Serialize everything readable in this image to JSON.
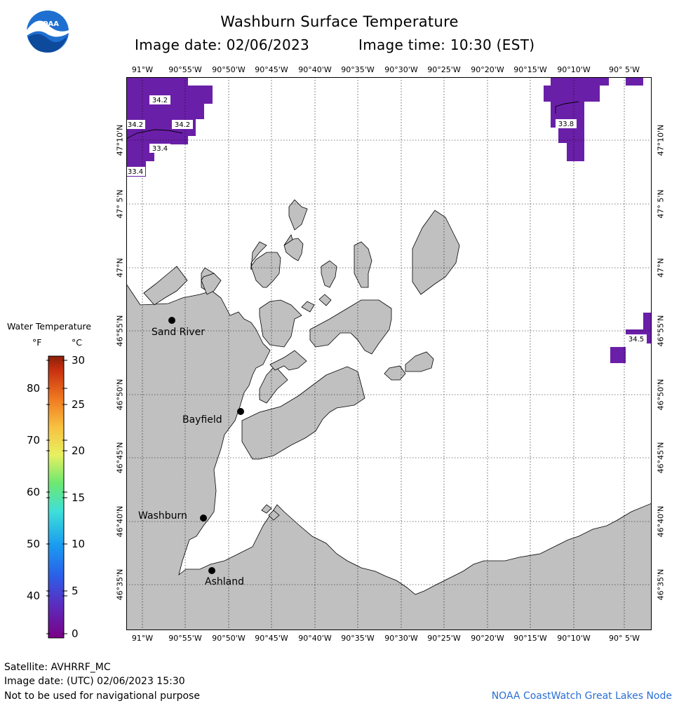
{
  "header": {
    "title": "Washburn Surface Temperature",
    "image_date": "Image date: 02/06/2023",
    "image_time": "Image time: 10:30 (EST)"
  },
  "logo": {
    "text": "NOAA"
  },
  "axes": {
    "longitude_labels": [
      "91°W",
      "90°55'W",
      "90°50'W",
      "90°45'W",
      "90°40'W",
      "90°35'W",
      "90°30'W",
      "90°25'W",
      "90°20'W",
      "90°15'W",
      "90°10'W",
      "90° 5'W"
    ],
    "latitude_labels": [
      "47°10'N",
      "47° 5'N",
      "47°N",
      "46°55'N",
      "46°50'N",
      "46°45'N",
      "46°40'N",
      "46°35'N"
    ]
  },
  "places": [
    {
      "name": "Sand River"
    },
    {
      "name": "Bayfield"
    },
    {
      "name": "Washburn"
    },
    {
      "name": "Ashland"
    }
  ],
  "temperature_labels": [
    "34.2",
    "34.2",
    "34.2",
    "33.4",
    "33.4",
    "33.8",
    "34.5"
  ],
  "legend": {
    "title": "Water Temperature",
    "unit_f": "°F",
    "unit_c": "°C",
    "f_ticks": [
      "40",
      "50",
      "60",
      "70",
      "80"
    ],
    "c_ticks": [
      "0",
      "5",
      "10",
      "15",
      "20",
      "25",
      "30"
    ]
  },
  "footer": {
    "satellite": "Satellite: AVHRRF_MC",
    "utc_date": "Image date: (UTC) 02/06/2023  15:30",
    "disclaimer": "Not to be used for navigational purpose",
    "credit": "NOAA CoastWatch Great Lakes Node"
  },
  "colors": {
    "land": "#c0c0c0",
    "cold_water": "#6a1fa8",
    "credit_text": "#2a6ed4"
  }
}
